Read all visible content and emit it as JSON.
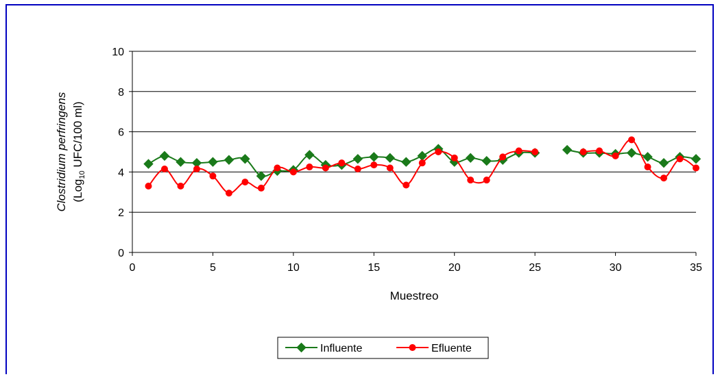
{
  "chart_data": {
    "type": "line",
    "xlabel": "Muestreo",
    "ylabel": {
      "italic": "Clostridium perfringens",
      "prefix": "(Log",
      "subscript": "10",
      "suffix": " UFC/100 ml)"
    },
    "xlim": [
      0,
      35
    ],
    "ylim": [
      0,
      10
    ],
    "x_ticks": [
      "0",
      "5",
      "10",
      "15",
      "20",
      "25",
      "30",
      "35"
    ],
    "y_ticks": [
      "0",
      "2",
      "4",
      "6",
      "8",
      "10"
    ],
    "grid": "horizontal",
    "legend": "bottom",
    "series": [
      {
        "name": "Influente",
        "color": "#1a7a1a",
        "marker": "diamond",
        "points": [
          [
            1,
            4.4
          ],
          [
            2,
            4.8
          ],
          [
            3,
            4.5
          ],
          [
            4,
            4.45
          ],
          [
            5,
            4.5
          ],
          [
            6,
            4.6
          ],
          [
            7,
            4.65
          ],
          [
            8,
            3.8
          ],
          [
            9,
            4.05
          ],
          [
            10,
            4.1
          ],
          [
            11,
            4.85
          ],
          [
            12,
            4.35
          ],
          [
            13,
            4.35
          ],
          [
            14,
            4.65
          ],
          [
            15,
            4.75
          ],
          [
            16,
            4.7
          ],
          [
            17,
            4.5
          ],
          [
            18,
            4.8
          ],
          [
            19,
            5.15
          ],
          [
            20,
            4.5
          ],
          [
            21,
            4.7
          ],
          [
            22,
            4.55
          ],
          [
            23,
            4.6
          ],
          [
            24,
            4.95
          ],
          [
            25,
            4.95
          ],
          [
            27,
            5.1
          ],
          [
            28,
            4.95
          ],
          [
            29,
            4.95
          ],
          [
            30,
            4.9
          ],
          [
            31,
            4.95
          ],
          [
            32,
            4.75
          ],
          [
            33,
            4.45
          ],
          [
            34,
            4.75
          ],
          [
            35,
            4.65
          ]
        ]
      },
      {
        "name": "Efluente",
        "color": "#ff0000",
        "marker": "circle",
        "points": [
          [
            1,
            3.3
          ],
          [
            2,
            4.15
          ],
          [
            3,
            3.3
          ],
          [
            4,
            4.15
          ],
          [
            5,
            3.8
          ],
          [
            6,
            2.95
          ],
          [
            7,
            3.5
          ],
          [
            8,
            3.2
          ],
          [
            9,
            4.2
          ],
          [
            10,
            4.0
          ],
          [
            11,
            4.25
          ],
          [
            12,
            4.2
          ],
          [
            13,
            4.45
          ],
          [
            14,
            4.15
          ],
          [
            15,
            4.35
          ],
          [
            16,
            4.2
          ],
          [
            17,
            3.35
          ],
          [
            18,
            4.45
          ],
          [
            19,
            5.0
          ],
          [
            20,
            4.7
          ],
          [
            21,
            3.6
          ],
          [
            22,
            3.6
          ],
          [
            23,
            4.75
          ],
          [
            24,
            5.05
          ],
          [
            25,
            5.0
          ],
          [
            28,
            5.0
          ],
          [
            29,
            5.05
          ],
          [
            30,
            4.8
          ],
          [
            31,
            5.6
          ],
          [
            32,
            4.25
          ],
          [
            33,
            3.7
          ],
          [
            34,
            4.65
          ],
          [
            35,
            4.2
          ]
        ]
      }
    ]
  }
}
